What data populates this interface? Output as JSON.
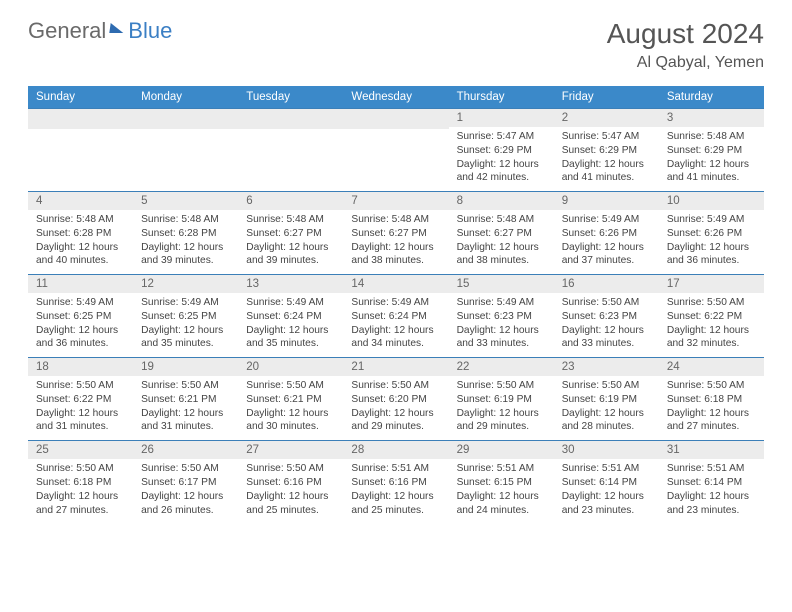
{
  "logo": {
    "word1": "General",
    "word2": "Blue"
  },
  "title": "August 2024",
  "location": "Al Qabyal, Yemen",
  "day_headers": [
    "Sunday",
    "Monday",
    "Tuesday",
    "Wednesday",
    "Thursday",
    "Friday",
    "Saturday"
  ],
  "colors": {
    "header_bg": "#3b89c9",
    "header_text": "#ffffff",
    "daynum_bg": "#ececec",
    "week_border": "#3b7fb8",
    "logo_gray": "#6a6a6a",
    "logo_blue": "#3b7fc4",
    "body_text": "#444"
  },
  "fonts": {
    "month_title_pt": 21,
    "location_pt": 12,
    "dayhdr_pt": 9,
    "daynum_pt": 9,
    "cell_pt": 8
  },
  "weeks": [
    [
      {
        "n": "",
        "sr": "",
        "ss": "",
        "dl": ""
      },
      {
        "n": "",
        "sr": "",
        "ss": "",
        "dl": ""
      },
      {
        "n": "",
        "sr": "",
        "ss": "",
        "dl": ""
      },
      {
        "n": "",
        "sr": "",
        "ss": "",
        "dl": ""
      },
      {
        "n": "1",
        "sr": "Sunrise: 5:47 AM",
        "ss": "Sunset: 6:29 PM",
        "dl": "Daylight: 12 hours and 42 minutes."
      },
      {
        "n": "2",
        "sr": "Sunrise: 5:47 AM",
        "ss": "Sunset: 6:29 PM",
        "dl": "Daylight: 12 hours and 41 minutes."
      },
      {
        "n": "3",
        "sr": "Sunrise: 5:48 AM",
        "ss": "Sunset: 6:29 PM",
        "dl": "Daylight: 12 hours and 41 minutes."
      }
    ],
    [
      {
        "n": "4",
        "sr": "Sunrise: 5:48 AM",
        "ss": "Sunset: 6:28 PM",
        "dl": "Daylight: 12 hours and 40 minutes."
      },
      {
        "n": "5",
        "sr": "Sunrise: 5:48 AM",
        "ss": "Sunset: 6:28 PM",
        "dl": "Daylight: 12 hours and 39 minutes."
      },
      {
        "n": "6",
        "sr": "Sunrise: 5:48 AM",
        "ss": "Sunset: 6:27 PM",
        "dl": "Daylight: 12 hours and 39 minutes."
      },
      {
        "n": "7",
        "sr": "Sunrise: 5:48 AM",
        "ss": "Sunset: 6:27 PM",
        "dl": "Daylight: 12 hours and 38 minutes."
      },
      {
        "n": "8",
        "sr": "Sunrise: 5:48 AM",
        "ss": "Sunset: 6:27 PM",
        "dl": "Daylight: 12 hours and 38 minutes."
      },
      {
        "n": "9",
        "sr": "Sunrise: 5:49 AM",
        "ss": "Sunset: 6:26 PM",
        "dl": "Daylight: 12 hours and 37 minutes."
      },
      {
        "n": "10",
        "sr": "Sunrise: 5:49 AM",
        "ss": "Sunset: 6:26 PM",
        "dl": "Daylight: 12 hours and 36 minutes."
      }
    ],
    [
      {
        "n": "11",
        "sr": "Sunrise: 5:49 AM",
        "ss": "Sunset: 6:25 PM",
        "dl": "Daylight: 12 hours and 36 minutes."
      },
      {
        "n": "12",
        "sr": "Sunrise: 5:49 AM",
        "ss": "Sunset: 6:25 PM",
        "dl": "Daylight: 12 hours and 35 minutes."
      },
      {
        "n": "13",
        "sr": "Sunrise: 5:49 AM",
        "ss": "Sunset: 6:24 PM",
        "dl": "Daylight: 12 hours and 35 minutes."
      },
      {
        "n": "14",
        "sr": "Sunrise: 5:49 AM",
        "ss": "Sunset: 6:24 PM",
        "dl": "Daylight: 12 hours and 34 minutes."
      },
      {
        "n": "15",
        "sr": "Sunrise: 5:49 AM",
        "ss": "Sunset: 6:23 PM",
        "dl": "Daylight: 12 hours and 33 minutes."
      },
      {
        "n": "16",
        "sr": "Sunrise: 5:50 AM",
        "ss": "Sunset: 6:23 PM",
        "dl": "Daylight: 12 hours and 33 minutes."
      },
      {
        "n": "17",
        "sr": "Sunrise: 5:50 AM",
        "ss": "Sunset: 6:22 PM",
        "dl": "Daylight: 12 hours and 32 minutes."
      }
    ],
    [
      {
        "n": "18",
        "sr": "Sunrise: 5:50 AM",
        "ss": "Sunset: 6:22 PM",
        "dl": "Daylight: 12 hours and 31 minutes."
      },
      {
        "n": "19",
        "sr": "Sunrise: 5:50 AM",
        "ss": "Sunset: 6:21 PM",
        "dl": "Daylight: 12 hours and 31 minutes."
      },
      {
        "n": "20",
        "sr": "Sunrise: 5:50 AM",
        "ss": "Sunset: 6:21 PM",
        "dl": "Daylight: 12 hours and 30 minutes."
      },
      {
        "n": "21",
        "sr": "Sunrise: 5:50 AM",
        "ss": "Sunset: 6:20 PM",
        "dl": "Daylight: 12 hours and 29 minutes."
      },
      {
        "n": "22",
        "sr": "Sunrise: 5:50 AM",
        "ss": "Sunset: 6:19 PM",
        "dl": "Daylight: 12 hours and 29 minutes."
      },
      {
        "n": "23",
        "sr": "Sunrise: 5:50 AM",
        "ss": "Sunset: 6:19 PM",
        "dl": "Daylight: 12 hours and 28 minutes."
      },
      {
        "n": "24",
        "sr": "Sunrise: 5:50 AM",
        "ss": "Sunset: 6:18 PM",
        "dl": "Daylight: 12 hours and 27 minutes."
      }
    ],
    [
      {
        "n": "25",
        "sr": "Sunrise: 5:50 AM",
        "ss": "Sunset: 6:18 PM",
        "dl": "Daylight: 12 hours and 27 minutes."
      },
      {
        "n": "26",
        "sr": "Sunrise: 5:50 AM",
        "ss": "Sunset: 6:17 PM",
        "dl": "Daylight: 12 hours and 26 minutes."
      },
      {
        "n": "27",
        "sr": "Sunrise: 5:50 AM",
        "ss": "Sunset: 6:16 PM",
        "dl": "Daylight: 12 hours and 25 minutes."
      },
      {
        "n": "28",
        "sr": "Sunrise: 5:51 AM",
        "ss": "Sunset: 6:16 PM",
        "dl": "Daylight: 12 hours and 25 minutes."
      },
      {
        "n": "29",
        "sr": "Sunrise: 5:51 AM",
        "ss": "Sunset: 6:15 PM",
        "dl": "Daylight: 12 hours and 24 minutes."
      },
      {
        "n": "30",
        "sr": "Sunrise: 5:51 AM",
        "ss": "Sunset: 6:14 PM",
        "dl": "Daylight: 12 hours and 23 minutes."
      },
      {
        "n": "31",
        "sr": "Sunrise: 5:51 AM",
        "ss": "Sunset: 6:14 PM",
        "dl": "Daylight: 12 hours and 23 minutes."
      }
    ]
  ]
}
